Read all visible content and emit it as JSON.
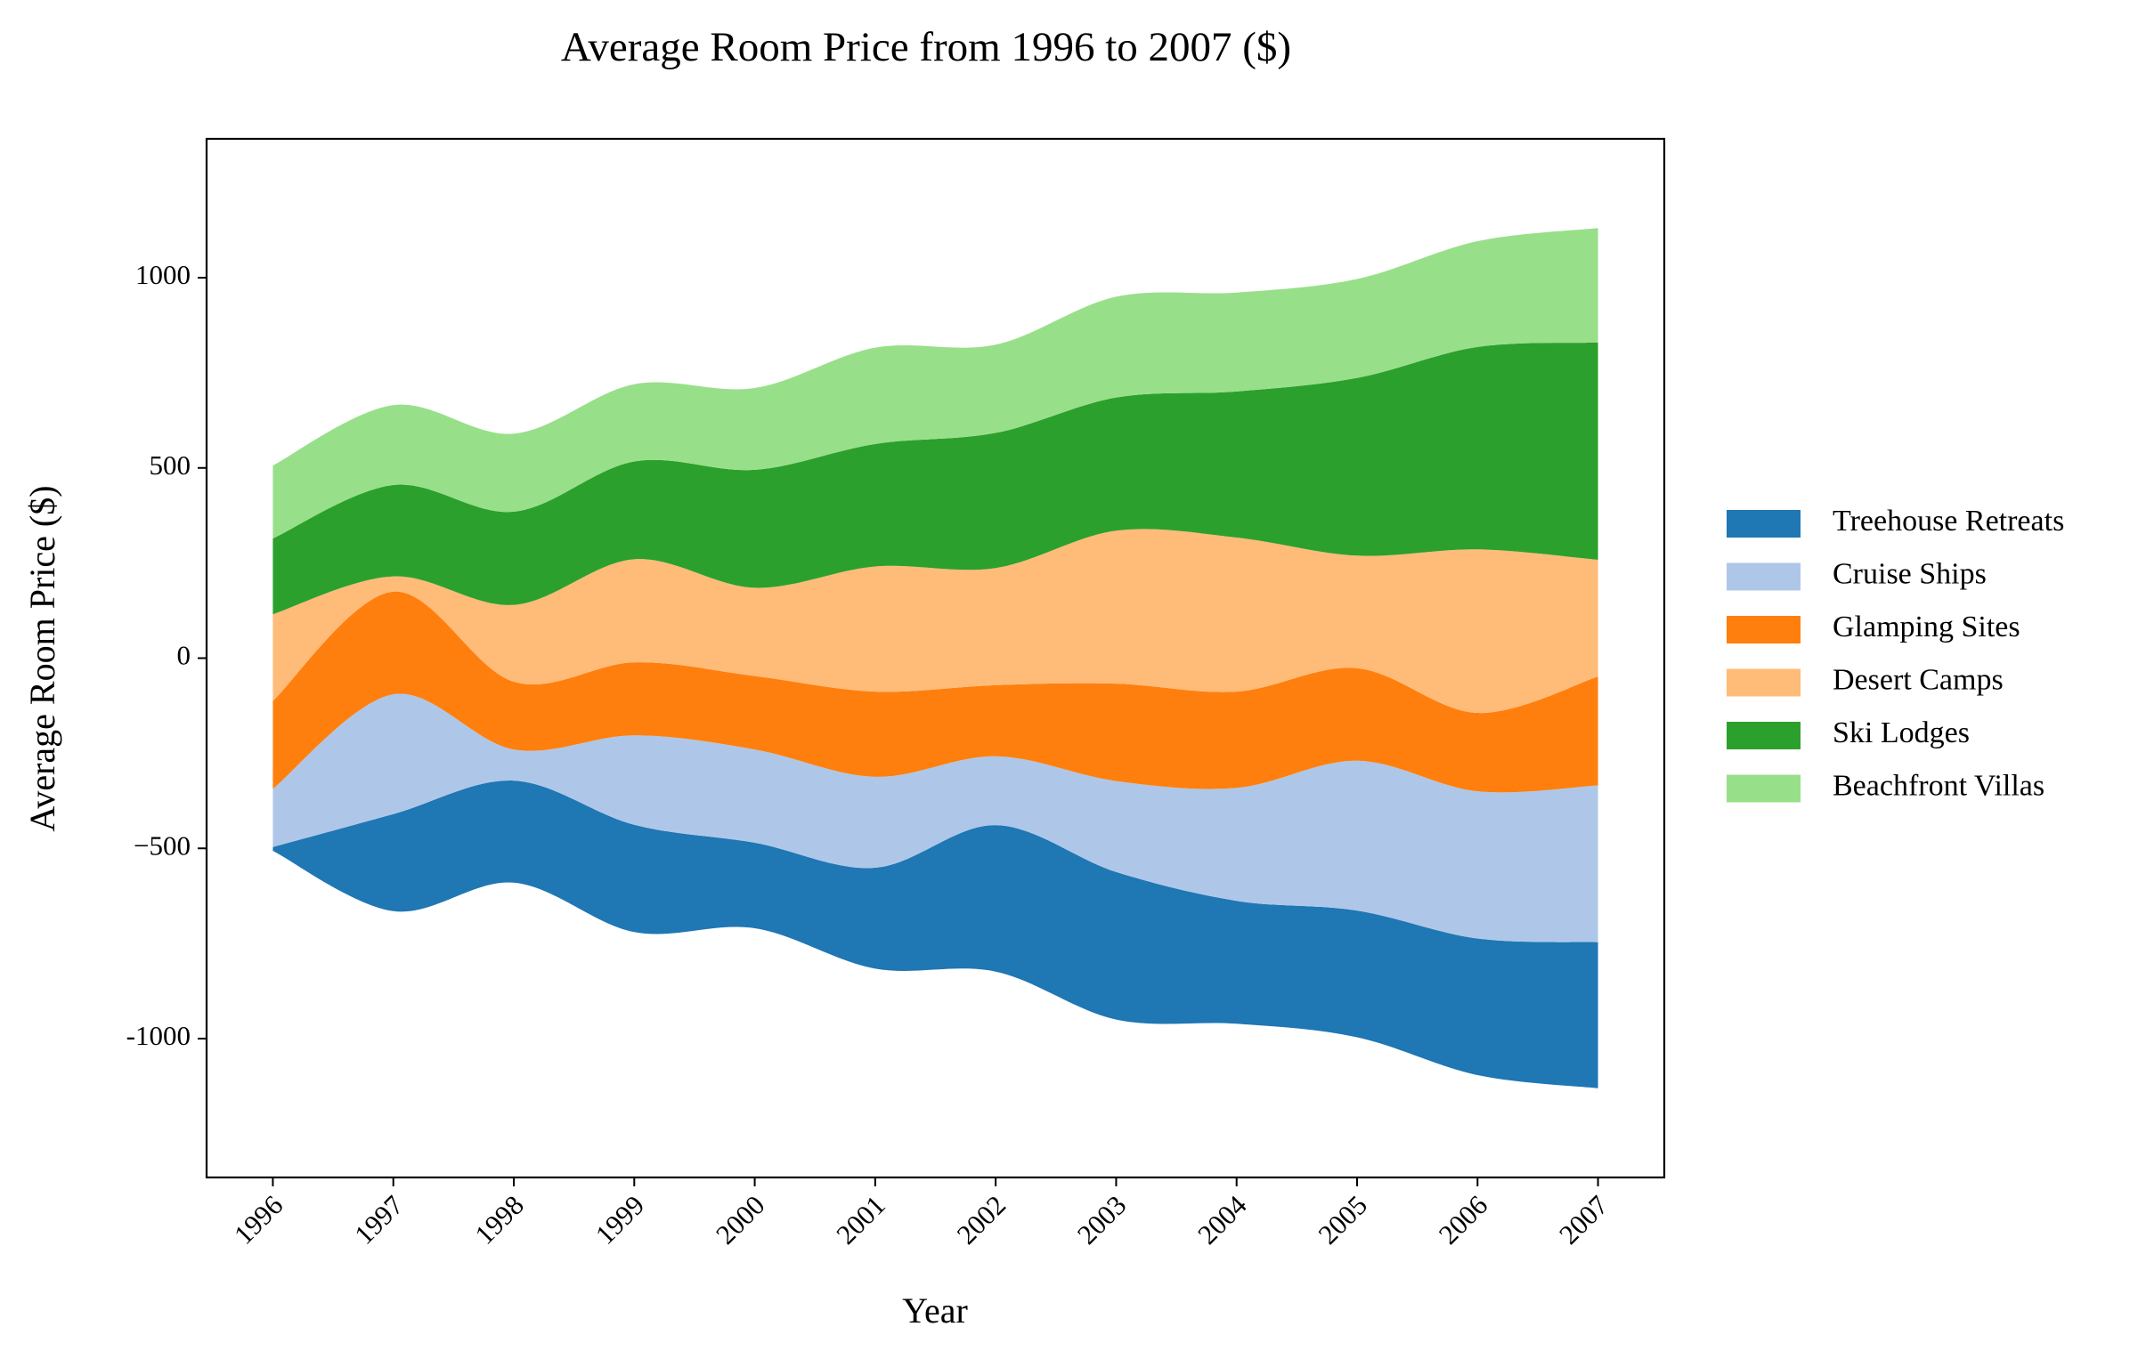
{
  "chart_data": {
    "type": "streamgraph",
    "title": "Average Room Price from 1996 to 2007 ($)",
    "x_label": "Year",
    "y_label": "Average Room Price ($)",
    "x": [
      1996,
      1997,
      1998,
      1999,
      2000,
      2001,
      2002,
      2003,
      2004,
      2005,
      2006,
      2007
    ],
    "xlim": [
      1995.45,
      2007.55
    ],
    "xticks": [
      1996,
      1997,
      1998,
      1999,
      2000,
      2001,
      2002,
      2003,
      2004,
      2005,
      2006,
      2007
    ],
    "ylim": [
      -1365,
      1365
    ],
    "yticks": [
      -1000,
      {
        "value": -500,
        "label": "−500"
      },
      0,
      500,
      1000
    ],
    "legend": "right",
    "series": [
      {
        "name": "Treehouse Retreats",
        "color": "#1f77b4",
        "values": [
          10,
          255,
          268,
          282,
          225,
          265,
          385,
          388,
          323,
          333,
          359,
          384
        ]
      },
      {
        "name": "Cruise Ships",
        "color": "#aec7e8",
        "values": [
          153,
          315,
          82,
          235,
          245,
          239,
          181,
          239,
          297,
          394,
          387,
          412
        ]
      },
      {
        "name": "Glamping Sites",
        "color": "#ff7f0e",
        "values": [
          231,
          270,
          178,
          192,
          193,
          224,
          187,
          256,
          253,
          243,
          206,
          286
        ]
      },
      {
        "name": "Desert Camps",
        "color": "#ffbb78",
        "values": [
          228,
          40,
          202,
          271,
          232,
          329,
          308,
          402,
          405,
          296,
          430,
          307
        ]
      },
      {
        "name": "Ski Lodges",
        "color": "#2ca02c",
        "values": [
          199,
          240,
          245,
          257,
          310,
          322,
          355,
          350,
          384,
          467,
          532,
          571
        ]
      },
      {
        "name": "Beachfront Villas",
        "color": "#98df8a",
        "values": [
          192,
          210,
          205,
          203,
          215,
          253,
          232,
          265,
          260,
          260,
          278,
          301
        ]
      }
    ]
  }
}
